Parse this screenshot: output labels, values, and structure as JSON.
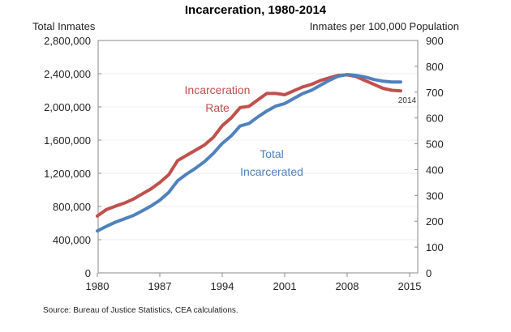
{
  "chart_data": {
    "type": "line",
    "title": "Incarceration, 1980-2014",
    "ylabel_left": "Total Inmates",
    "ylabel_right": "Inmates per 100,000 Population",
    "source": "Source: Bureau of Justice Statistics, CEA calculations.",
    "xlim": [
      1980,
      2015
    ],
    "xticks": [
      "1980",
      "1987",
      "1994",
      "2001",
      "2008",
      "2015"
    ],
    "ylim_left": [
      0,
      2800000
    ],
    "yticks_left": [
      "0",
      "400,000",
      "800,000",
      "1,200,000",
      "1,600,000",
      "2,000,000",
      "2,400,000",
      "2,800,000"
    ],
    "ylim_right": [
      0,
      900
    ],
    "yticks_right": [
      "0",
      "100",
      "200",
      "300",
      "400",
      "500",
      "600",
      "700",
      "800",
      "900"
    ],
    "grid": true,
    "end_label": "2014",
    "x": [
      1980,
      1981,
      1982,
      1983,
      1984,
      1985,
      1986,
      1987,
      1988,
      1989,
      1990,
      1991,
      1992,
      1993,
      1994,
      1995,
      1996,
      1997,
      1998,
      1999,
      2000,
      2001,
      2002,
      2003,
      2004,
      2005,
      2006,
      2007,
      2008,
      2009,
      2010,
      2011,
      2012,
      2013,
      2014
    ],
    "series": [
      {
        "name": "Incarceration Rate",
        "label_lines": [
          "Incarceration",
          "Rate"
        ],
        "axis": "right",
        "color": "#c0504d",
        "values": [
          220,
          245,
          258,
          270,
          285,
          305,
          325,
          350,
          380,
          435,
          455,
          475,
          495,
          525,
          570,
          600,
          640,
          645,
          670,
          695,
          695,
          690,
          705,
          720,
          730,
          745,
          755,
          765,
          767,
          760,
          745,
          730,
          715,
          707,
          705
        ]
      },
      {
        "name": "Total Incarcerated",
        "label_lines": [
          "Total",
          "Incarcerated"
        ],
        "axis": "left",
        "color": "#4f81bd",
        "values": [
          505000,
          560000,
          610000,
          650000,
          690000,
          745000,
          805000,
          875000,
          970000,
          1110000,
          1190000,
          1260000,
          1340000,
          1440000,
          1560000,
          1650000,
          1770000,
          1800000,
          1880000,
          1950000,
          2010000,
          2040000,
          2100000,
          2160000,
          2200000,
          2260000,
          2320000,
          2370000,
          2390000,
          2380000,
          2360000,
          2330000,
          2310000,
          2300000,
          2300000
        ]
      }
    ]
  }
}
